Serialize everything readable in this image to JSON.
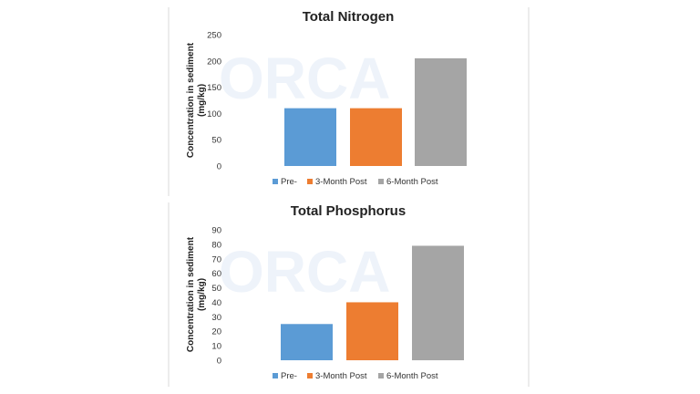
{
  "chart_data": [
    {
      "type": "bar",
      "title": "Total Nitrogen",
      "ylabel": "Concentration in sediment (mg/kg)",
      "ylabel_lines": [
        "Concentration in sediment",
        "(mg/kg)"
      ],
      "categories": [
        "Pre-",
        "3-Month Post",
        "6-Month Post"
      ],
      "values": [
        110,
        110,
        205
      ],
      "colors": [
        "#5b9bd5",
        "#ed7d31",
        "#a5a5a5"
      ],
      "yticks": [
        0,
        50,
        100,
        150,
        200,
        250
      ],
      "ylim": [
        0,
        250
      ],
      "grid": false,
      "legend_position": "bottom"
    },
    {
      "type": "bar",
      "title": "Total Phosphorus",
      "ylabel": "Concentration in sediment (mg/kg)",
      "ylabel_lines": [
        "Concentration in sediment",
        "(mg/kg)"
      ],
      "categories": [
        "Pre-",
        "3-Month Post",
        "6-Month Post"
      ],
      "values": [
        25,
        40,
        79
      ],
      "colors": [
        "#5b9bd5",
        "#ed7d31",
        "#a5a5a5"
      ],
      "yticks": [
        0,
        10,
        20,
        30,
        40,
        50,
        60,
        70,
        80,
        90
      ],
      "ylim": [
        0,
        90
      ],
      "grid": false,
      "legend_position": "bottom"
    }
  ]
}
